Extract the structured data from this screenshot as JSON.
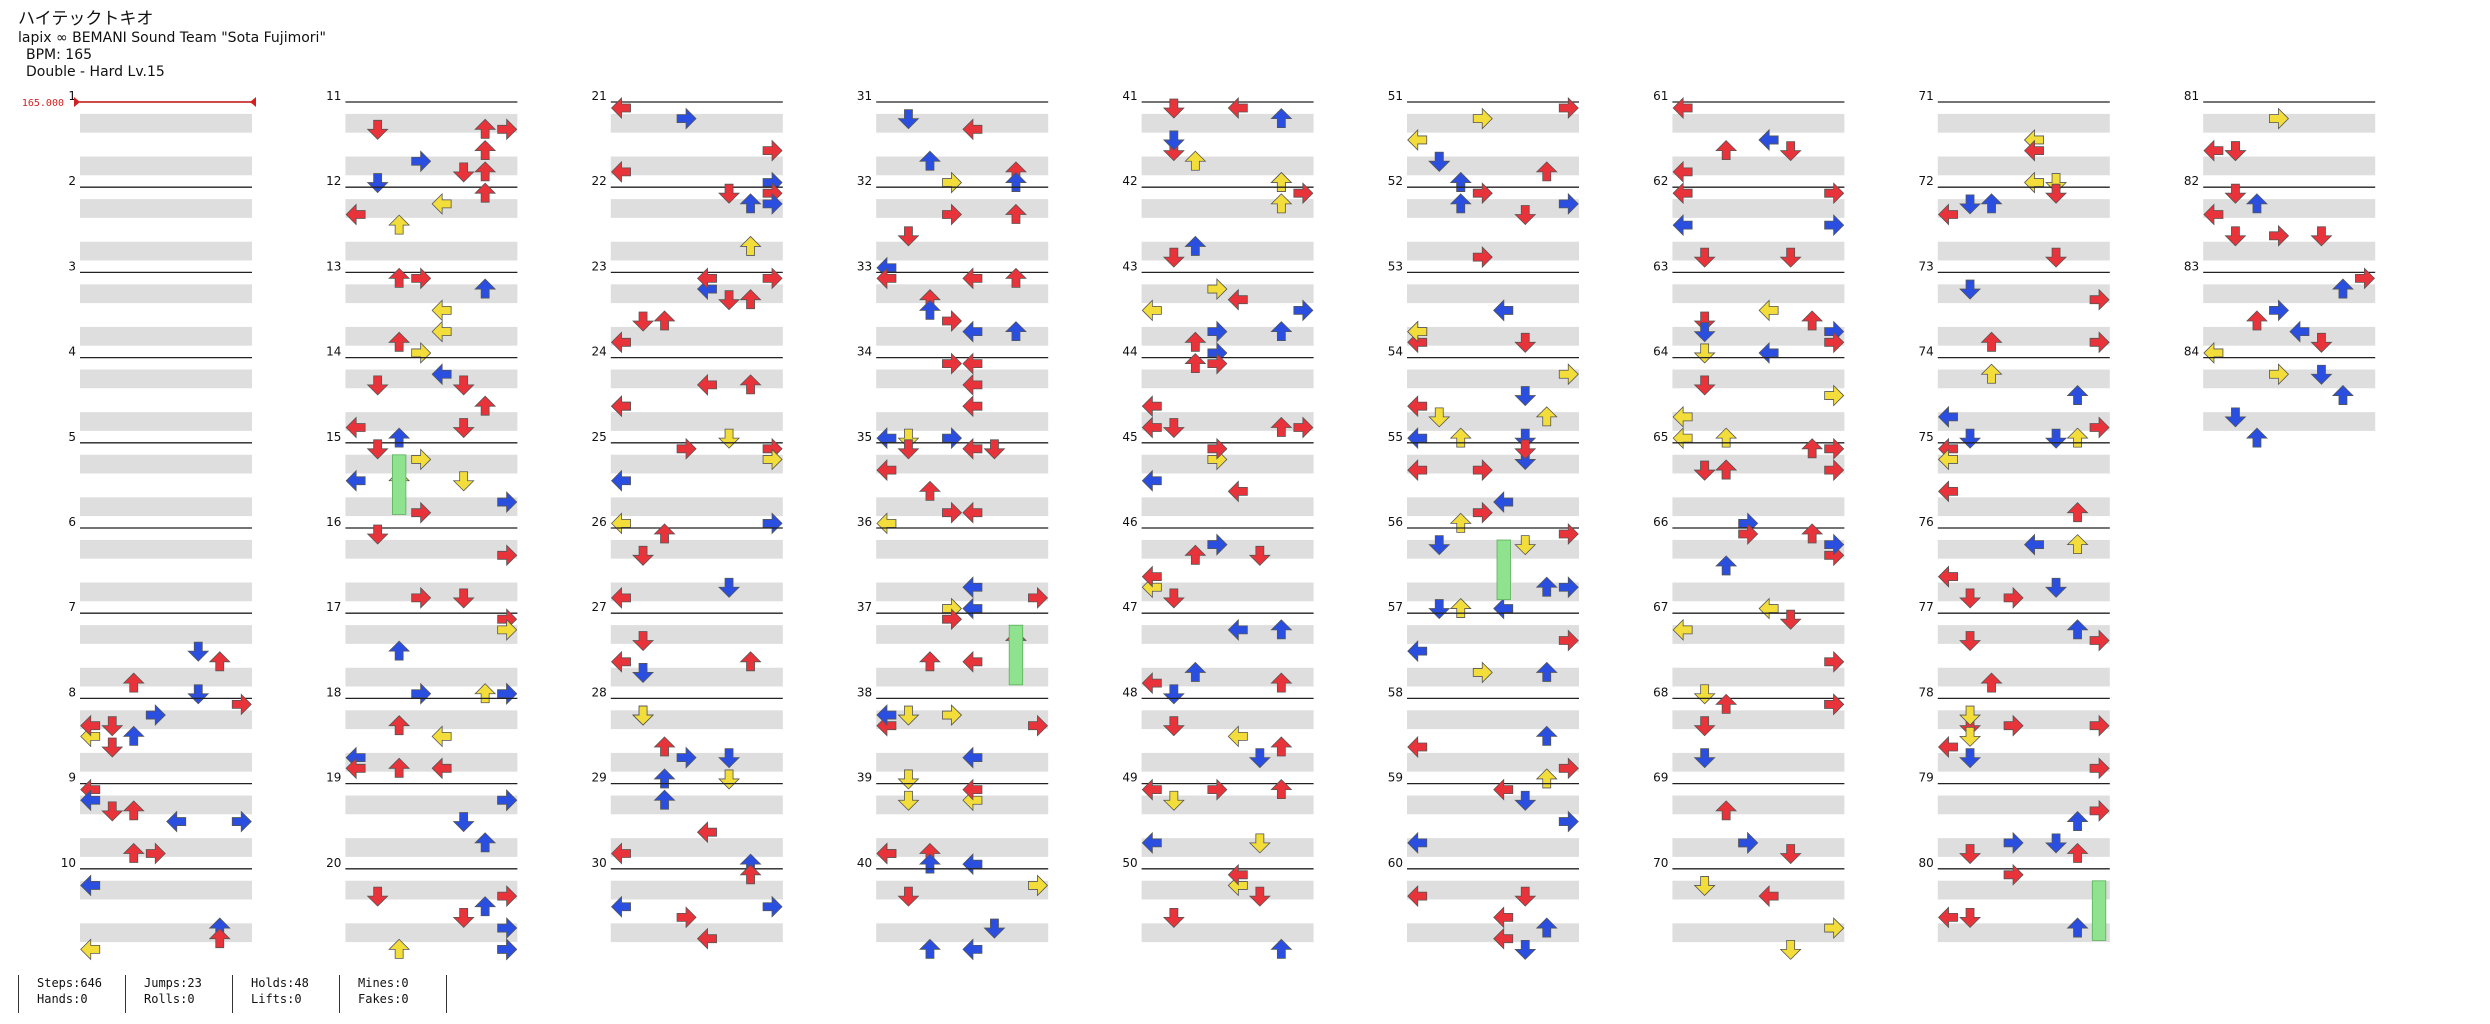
{
  "song": {
    "title": "ハイテックトキオ",
    "artist": "lapix ∞ BEMANI Sound Team \"Sota Fujimori\"",
    "bpm_label": "BPM: 165",
    "chart_label": "Double - Hard  Lv.15"
  },
  "bpm_marker": "165.000",
  "colors": {
    "quarter": "#e8333a",
    "eighth": "#2a4fe0",
    "sixteenth": "#f2dd3a",
    "hold": "#8fe38f",
    "band": "#dedede",
    "line": "#222222"
  },
  "chart_data": {
    "type": "other",
    "total_measures": 84,
    "lanes_per_measure": 8,
    "measures_per_column": 10,
    "numbers_shown": [
      1,
      2,
      3,
      4,
      5,
      6,
      7,
      8,
      9,
      10,
      11,
      12,
      13,
      14,
      15,
      16,
      17,
      18,
      19,
      20,
      21,
      22,
      23,
      24,
      25,
      26,
      27,
      28,
      29,
      30,
      31,
      32,
      33,
      34,
      35,
      36,
      37,
      38,
      39,
      40,
      41,
      42,
      43,
      44,
      45,
      46,
      47,
      48,
      49,
      50,
      51,
      52,
      53,
      54,
      55,
      56,
      57,
      58,
      59,
      60,
      61,
      62,
      63,
      64,
      65,
      66,
      67,
      68,
      69,
      70,
      71,
      72,
      73,
      74,
      75,
      76,
      77,
      78,
      79,
      80,
      81,
      82,
      83,
      84
    ]
  },
  "stats": [
    {
      "top": "Steps:646",
      "bottom": "Hands:0"
    },
    {
      "top": "Jumps:23",
      "bottom": "Rolls:0"
    },
    {
      "top": "Holds:48",
      "bottom": "Lifts:0"
    },
    {
      "top": "Mines:0",
      "bottom": "Fakes:0"
    }
  ]
}
